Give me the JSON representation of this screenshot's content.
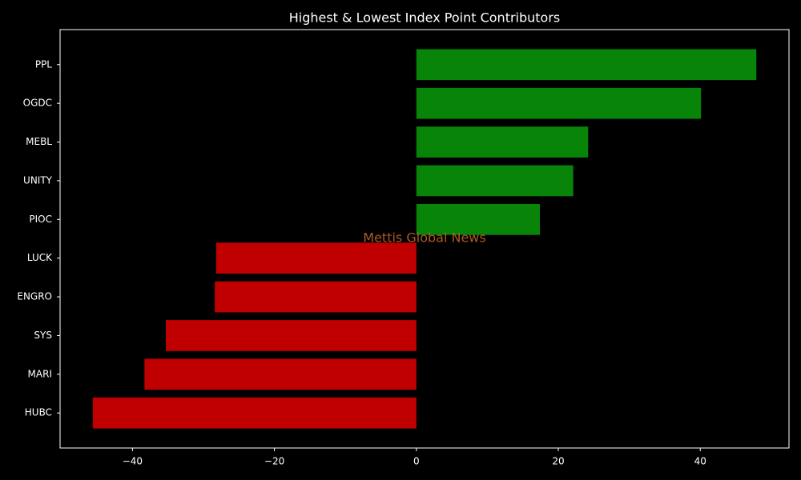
{
  "chart_data": {
    "type": "barh",
    "title": "Highest & Lowest Index Point Contributors",
    "annotation": "Mettis Global News",
    "categories": [
      "PPL",
      "OGDC",
      "MEBL",
      "UNITY",
      "PIOC",
      "LUCK",
      "ENGRO",
      "SYS",
      "MARI",
      "HUBC"
    ],
    "values": [
      47.9,
      40.1,
      24.2,
      22.1,
      17.4,
      -28.2,
      -28.4,
      -35.3,
      -38.3,
      -45.6
    ],
    "colors": [
      "#088408",
      "#088408",
      "#088408",
      "#088408",
      "#088408",
      "#c00000",
      "#c00000",
      "#c00000",
      "#c00000",
      "#c00000"
    ],
    "xlim": [
      -50.2,
      52.5
    ],
    "xticks": [
      {
        "value": -40,
        "label": "−40"
      },
      {
        "value": -20,
        "label": "−20"
      },
      0,
      20,
      40
    ]
  }
}
